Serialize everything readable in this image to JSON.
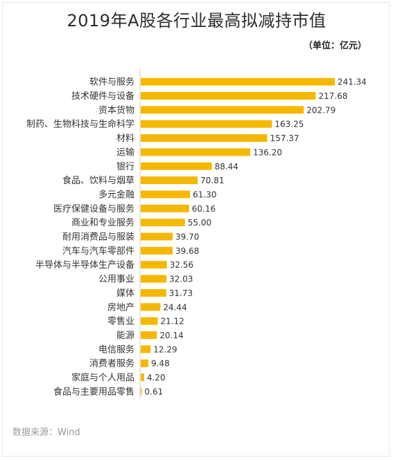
{
  "title": "2019年A股各行业最高拟减持市值",
  "unit": "（单位：亿元）",
  "source": "数据来源：Wind",
  "colors": {
    "bar": "#f5b800",
    "axis": "#cfcfcf"
  },
  "chart_data": {
    "type": "bar",
    "orientation": "horizontal",
    "title": "2019年A股各行业最高拟减持市值",
    "xlim": [
      0,
      250
    ],
    "grid": false,
    "legend": "none",
    "categories": [
      "软件与服务",
      "技术硬件与设备",
      "资本货物",
      "制药、生物科技与生命科学",
      "材料",
      "运输",
      "银行",
      "食品、饮料与烟草",
      "多元金融",
      "医疗保健设备与服务",
      "商业和专业服务",
      "耐用消费品与服装",
      "汽车与汽车零部件",
      "半导体与半导体生产设备",
      "公用事业",
      "媒体",
      "房地产",
      "零售业",
      "能源",
      "电信服务",
      "消费者服务",
      "家庭与个人用品",
      "食品与主要用品零售"
    ],
    "values": [
      241.34,
      217.68,
      202.79,
      163.25,
      157.37,
      136.2,
      88.44,
      70.81,
      61.3,
      60.16,
      55.0,
      39.7,
      39.68,
      32.56,
      32.03,
      31.73,
      24.44,
      21.12,
      20.14,
      12.29,
      9.48,
      4.2,
      0.61
    ],
    "value_labels": [
      "241.34",
      "217.68",
      "202.79",
      "163.25",
      "157.37",
      "136.20",
      "88.44",
      "70.81",
      "61.30",
      "60.16",
      "55.00",
      "39.70",
      "39.68",
      "32.56",
      "32.03",
      "31.73",
      "24.44",
      "21.12",
      "20.14",
      "12.29",
      "9.48",
      "4.20",
      "0.61"
    ]
  }
}
